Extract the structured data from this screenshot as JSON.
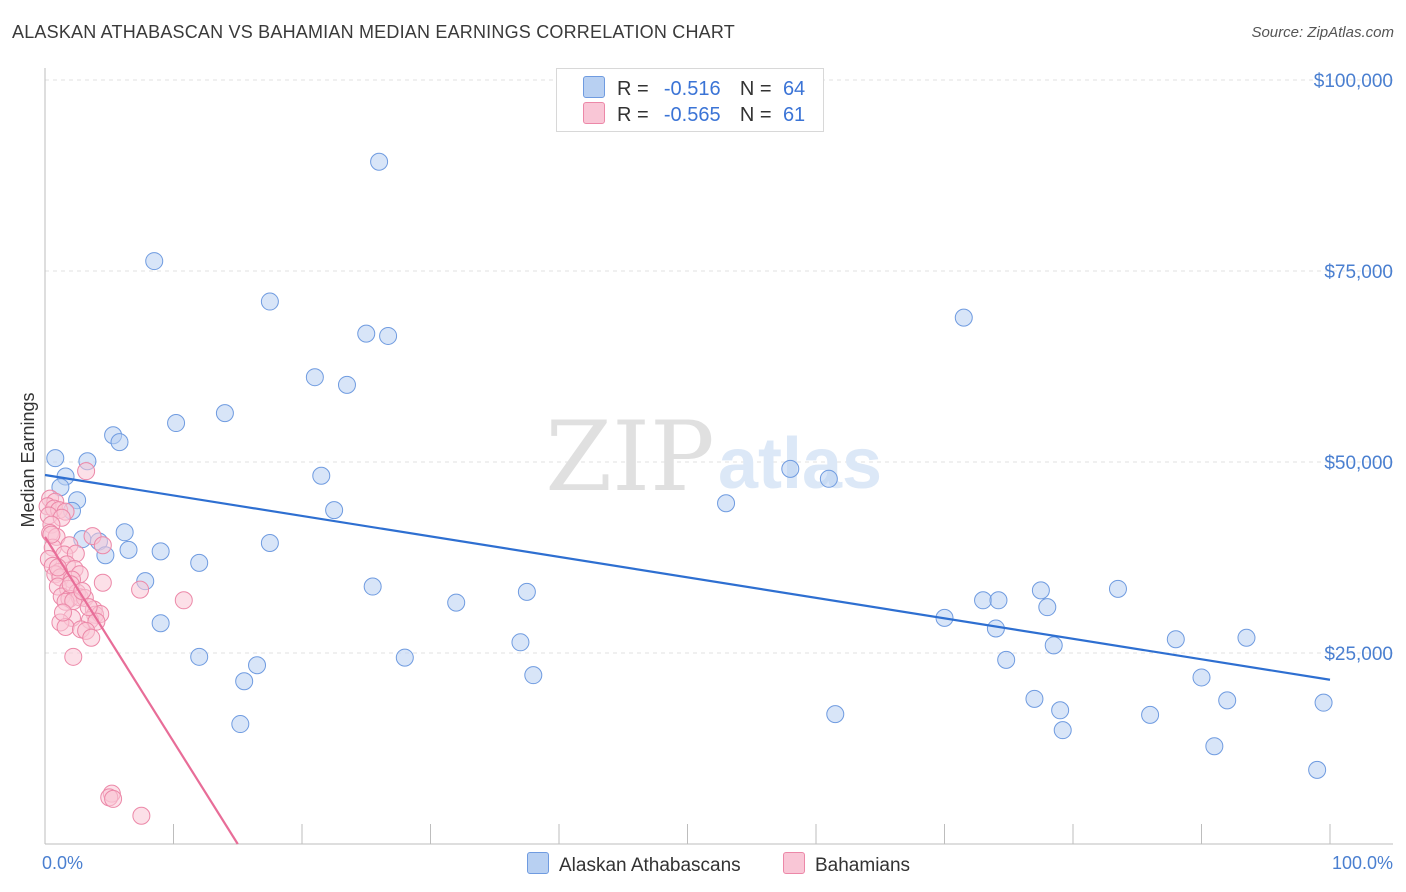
{
  "title": "ALASKAN ATHABASCAN VS BAHAMIAN MEDIAN EARNINGS CORRELATION CHART",
  "source": "Source: ZipAtlas.com",
  "watermark": {
    "zip": "ZIP",
    "atlas": "atlas"
  },
  "legend": {
    "r_label": "R =",
    "n_label": "N =",
    "rows": [
      {
        "r": "-0.516",
        "n": "64",
        "fill": "#b8d0f2",
        "stroke": "#6f9be0"
      },
      {
        "r": "-0.565",
        "n": "61",
        "fill": "#f9c6d6",
        "stroke": "#ec88a8"
      }
    ]
  },
  "bottom_legend": [
    {
      "label": "Alaskan Athabascans",
      "fill": "#b8d0f2",
      "stroke": "#6f9be0"
    },
    {
      "label": "Bahamians",
      "fill": "#f9c6d6",
      "stroke": "#ec88a8"
    }
  ],
  "chart_data": {
    "type": "scatter",
    "title": "ALASKAN ATHABASCAN VS BAHAMIAN MEDIAN EARNINGS CORRELATION CHART",
    "xlabel": "",
    "ylabel": "Median Earnings",
    "xlim": [
      0,
      100
    ],
    "ylim": [
      0,
      100000
    ],
    "x_tick_labels": [
      "0.0%",
      "100.0%"
    ],
    "y_ticks": [
      25000,
      50000,
      75000,
      100000
    ],
    "y_tick_labels": [
      "$25,000",
      "$50,000",
      "$75,000",
      "$100,000"
    ],
    "grid": true,
    "series": [
      {
        "name": "Alaskan Athabascans",
        "color": "#6f9be0",
        "fill": "#b8d0f2",
        "line_color": "#2e6fd1",
        "trend": {
          "x": [
            0,
            100
          ],
          "y": [
            48300,
            21500
          ]
        },
        "points": [
          [
            26.0,
            89300
          ],
          [
            8.5,
            76300
          ],
          [
            17.5,
            71000
          ],
          [
            25.0,
            66800
          ],
          [
            26.7,
            66500
          ],
          [
            71.5,
            68900
          ],
          [
            21.0,
            61100
          ],
          [
            23.5,
            60100
          ],
          [
            14.0,
            56400
          ],
          [
            10.2,
            55100
          ],
          [
            5.3,
            53500
          ],
          [
            5.8,
            52600
          ],
          [
            0.8,
            50500
          ],
          [
            3.3,
            50100
          ],
          [
            1.6,
            48100
          ],
          [
            21.5,
            48200
          ],
          [
            58.0,
            49100
          ],
          [
            61.0,
            47800
          ],
          [
            1.2,
            46700
          ],
          [
            2.5,
            45000
          ],
          [
            53.0,
            44600
          ],
          [
            2.1,
            43600
          ],
          [
            22.5,
            43700
          ],
          [
            6.2,
            40800
          ],
          [
            2.9,
            39900
          ],
          [
            4.2,
            39600
          ],
          [
            17.5,
            39400
          ],
          [
            6.5,
            38500
          ],
          [
            9.0,
            38300
          ],
          [
            4.7,
            37800
          ],
          [
            12.0,
            36800
          ],
          [
            7.8,
            34400
          ],
          [
            25.5,
            33700
          ],
          [
            37.5,
            33000
          ],
          [
            32.0,
            31600
          ],
          [
            73.0,
            31900
          ],
          [
            74.2,
            31900
          ],
          [
            77.5,
            33200
          ],
          [
            83.5,
            33400
          ],
          [
            78.0,
            31000
          ],
          [
            70.0,
            29600
          ],
          [
            74.0,
            28200
          ],
          [
            88.0,
            26800
          ],
          [
            93.5,
            27000
          ],
          [
            9.0,
            28900
          ],
          [
            37.0,
            26400
          ],
          [
            78.5,
            26000
          ],
          [
            12.0,
            24500
          ],
          [
            28.0,
            24400
          ],
          [
            74.8,
            24100
          ],
          [
            16.5,
            23400
          ],
          [
            15.5,
            21300
          ],
          [
            38.0,
            22100
          ],
          [
            90.0,
            21800
          ],
          [
            77.0,
            19000
          ],
          [
            92.0,
            18800
          ],
          [
            99.5,
            18500
          ],
          [
            61.5,
            17000
          ],
          [
            79.0,
            17500
          ],
          [
            86.0,
            16900
          ],
          [
            15.2,
            15700
          ],
          [
            79.2,
            14900
          ],
          [
            91.0,
            12800
          ],
          [
            99.0,
            9700
          ]
        ]
      },
      {
        "name": "Bahamians",
        "color": "#ec88a8",
        "fill": "#f9c6d6",
        "line_color": "#e86d98",
        "trend": {
          "x": [
            0,
            15
          ],
          "y": [
            40200,
            0
          ]
        },
        "points": [
          [
            3.2,
            48800
          ],
          [
            0.4,
            45200
          ],
          [
            0.8,
            44800
          ],
          [
            0.2,
            44200
          ],
          [
            0.7,
            43900
          ],
          [
            1.1,
            43700
          ],
          [
            1.6,
            43500
          ],
          [
            0.3,
            43000
          ],
          [
            1.3,
            42700
          ],
          [
            0.5,
            41800
          ],
          [
            0.4,
            40700
          ],
          [
            0.9,
            40200
          ],
          [
            3.7,
            40300
          ],
          [
            1.9,
            39100
          ],
          [
            4.5,
            39100
          ],
          [
            0.6,
            38800
          ],
          [
            1.5,
            37900
          ],
          [
            2.4,
            38000
          ],
          [
            0.3,
            37300
          ],
          [
            1.7,
            36600
          ],
          [
            0.6,
            36400
          ],
          [
            2.3,
            36000
          ],
          [
            1.1,
            35600
          ],
          [
            0.8,
            35300
          ],
          [
            2.7,
            35300
          ],
          [
            1.2,
            34900
          ],
          [
            2.1,
            34600
          ],
          [
            4.5,
            34200
          ],
          [
            1.0,
            33700
          ],
          [
            1.8,
            33400
          ],
          [
            7.4,
            33300
          ],
          [
            2.5,
            32900
          ],
          [
            1.3,
            32400
          ],
          [
            1.9,
            32100
          ],
          [
            2.7,
            32300
          ],
          [
            3.1,
            32200
          ],
          [
            1.6,
            31700
          ],
          [
            2.2,
            31800
          ],
          [
            10.8,
            31900
          ],
          [
            3.8,
            30700
          ],
          [
            3.9,
            30000
          ],
          [
            4.3,
            30100
          ],
          [
            2.1,
            29600
          ],
          [
            3.5,
            29300
          ],
          [
            1.2,
            29000
          ],
          [
            4.0,
            29100
          ],
          [
            1.6,
            28400
          ],
          [
            2.8,
            28100
          ],
          [
            3.2,
            27900
          ],
          [
            3.6,
            27000
          ],
          [
            2.2,
            24500
          ],
          [
            5.2,
            6600
          ],
          [
            5.0,
            6100
          ],
          [
            5.3,
            5900
          ],
          [
            7.5,
            3700
          ],
          [
            0.5,
            40500
          ],
          [
            1.0,
            36200
          ],
          [
            2.0,
            34000
          ],
          [
            2.9,
            33100
          ],
          [
            3.4,
            31000
          ],
          [
            1.4,
            30300
          ]
        ]
      }
    ]
  }
}
